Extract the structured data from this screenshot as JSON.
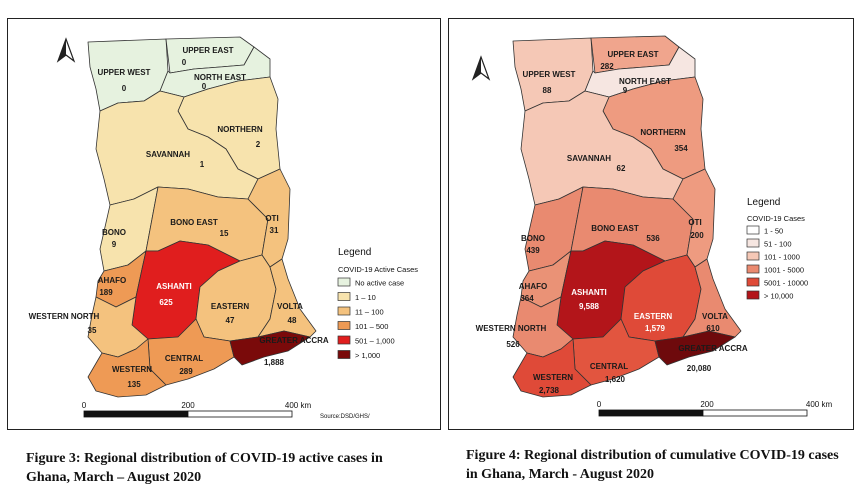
{
  "map1": {
    "legend_title": "Legend",
    "legend_subtitle": "COVID-19 Active Cases",
    "legend_items": [
      {
        "label": "No active case",
        "color": "#e6f2df"
      },
      {
        "label": "1 – 10",
        "color": "#f7e3ad"
      },
      {
        "label": "11 – 100",
        "color": "#f4c27e"
      },
      {
        "label": "101 – 500",
        "color": "#ee9a55"
      },
      {
        "label": "501 – 1,000",
        "color": "#e01e1e"
      },
      {
        "label": "> 1,000",
        "color": "#7a0a0a"
      }
    ],
    "regions": {
      "upper_west": {
        "name": "UPPER WEST",
        "value": "0",
        "color": "#e6f2df"
      },
      "upper_east": {
        "name": "UPPER EAST",
        "value": "0",
        "color": "#e6f2df"
      },
      "north_east": {
        "name": "NORTH EAST",
        "value": "0",
        "color": "#e6f2df"
      },
      "northern": {
        "name": "NORTHERN",
        "value": "2",
        "color": "#f7e3ad"
      },
      "savannah": {
        "name": "SAVANNAH",
        "value": "1",
        "color": "#f7e3ad"
      },
      "bono": {
        "name": "BONO",
        "value": "9",
        "color": "#f7e3ad"
      },
      "bono_east": {
        "name": "BONO EAST",
        "value": "15",
        "color": "#f4c27e"
      },
      "oti": {
        "name": "OTI",
        "value": "31",
        "color": "#f4c27e"
      },
      "ahafo": {
        "name": "AHAFO",
        "value": "189",
        "color": "#ee9a55"
      },
      "ashanti": {
        "name": "ASHANTI",
        "value": "625",
        "color": "#e01e1e"
      },
      "eastern": {
        "name": "EASTERN",
        "value": "47",
        "color": "#f4c27e"
      },
      "volta": {
        "name": "VOLTA",
        "value": "48",
        "color": "#f4c27e"
      },
      "western_north": {
        "name": "WESTERN NORTH",
        "value": "35",
        "color": "#f4c27e"
      },
      "central": {
        "name": "CENTRAL",
        "value": "289",
        "color": "#ee9a55"
      },
      "western": {
        "name": "WESTERN",
        "value": "135",
        "color": "#ee9a55"
      },
      "greater_accra": {
        "name": "GREATER ACCRA",
        "value": "1,888",
        "color": "#7a0a0a"
      }
    },
    "scale_ticks": [
      "0",
      "200",
      "400 km"
    ],
    "source": "Source:DSD/GHS/"
  },
  "map2": {
    "legend_title": "Legend",
    "legend_subtitle": "COVID-19 Cases",
    "legend_items": [
      {
        "label": "1 - 50",
        "color": "#ffffff"
      },
      {
        "label": "51 - 100",
        "color": "#f6e6e1"
      },
      {
        "label": "101 - 1000",
        "color": "#f5c8b6"
      },
      {
        "label": "1001 - 5000",
        "color": "#ea8a70"
      },
      {
        "label": "5001 - 10000",
        "color": "#df4a38"
      },
      {
        "label": "> 10,000",
        "color": "#b3151a"
      }
    ],
    "regions": {
      "upper_west": {
        "name": "UPPER WEST",
        "value": "88",
        "color": "#f5c8b6"
      },
      "upper_east": {
        "name": "UPPER EAST",
        "value": "282",
        "color": "#f0a58d"
      },
      "north_east": {
        "name": "NORTH EAST",
        "value": "9",
        "color": "#f6e6e1"
      },
      "northern": {
        "name": "NORTHERN",
        "value": "354",
        "color": "#ee9b80"
      },
      "savannah": {
        "name": "SAVANNAH",
        "value": "62",
        "color": "#f5c8b6"
      },
      "bono": {
        "name": "BONO",
        "value": "439",
        "color": "#e98a70"
      },
      "bono_east": {
        "name": "BONO EAST",
        "value": "536",
        "color": "#e98a70"
      },
      "oti": {
        "name": "OTI",
        "value": "200",
        "color": "#ee9b80"
      },
      "ahafo": {
        "name": "AHAFO",
        "value": "364",
        "color": "#ea9276"
      },
      "ashanti": {
        "name": "ASHANTI",
        "value": "9,588",
        "color": "#b3151a"
      },
      "eastern": {
        "name": "EASTERN",
        "value": "1,579",
        "color": "#df4a38"
      },
      "volta": {
        "name": "VOLTA",
        "value": "610",
        "color": "#e98a70"
      },
      "western_north": {
        "name": "WESTERN NORTH",
        "value": "526",
        "color": "#e98a70"
      },
      "central": {
        "name": "CENTRAL",
        "value": "1,620",
        "color": "#e2553f"
      },
      "western": {
        "name": "WESTERN",
        "value": "2,738",
        "color": "#df4a38"
      },
      "greater_accra": {
        "name": "GREATER ACCRA",
        "value": "20,080",
        "color": "#6e0a0c"
      }
    },
    "scale_ticks": [
      "0",
      "200",
      "400 km"
    ]
  },
  "captions": {
    "fig3": "Figure 3: Regional distribution of COVID-19 active cases in Ghana, March – August 2020",
    "fig4": "Figure 4: Regional distribution of cumulative COVID-19 cases in Ghana, March - August 2020"
  }
}
